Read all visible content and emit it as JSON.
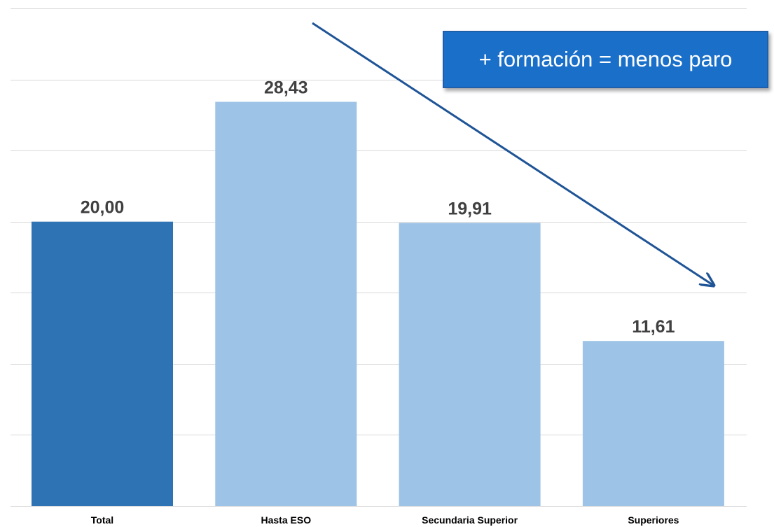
{
  "chart_data": {
    "type": "bar",
    "categories": [
      "Total",
      "Hasta ESO",
      "Secundaria Superior",
      "Superiores"
    ],
    "values": [
      20.0,
      28.43,
      19.91,
      11.61
    ],
    "value_labels": [
      "20,00",
      "28,43",
      "19,91",
      "11,61"
    ],
    "ylim": [
      0,
      35
    ],
    "grid": true,
    "grid_step": 5,
    "colors": {
      "highlight": "#2e74b5",
      "default": "#9dc3e6",
      "grid": "#d9d9d9",
      "arrow": "#1f5496"
    },
    "highlight_index": 0,
    "annotation": {
      "text": "+ formación = menos paro",
      "background": "#1a6fc9",
      "arrow": true
    }
  }
}
